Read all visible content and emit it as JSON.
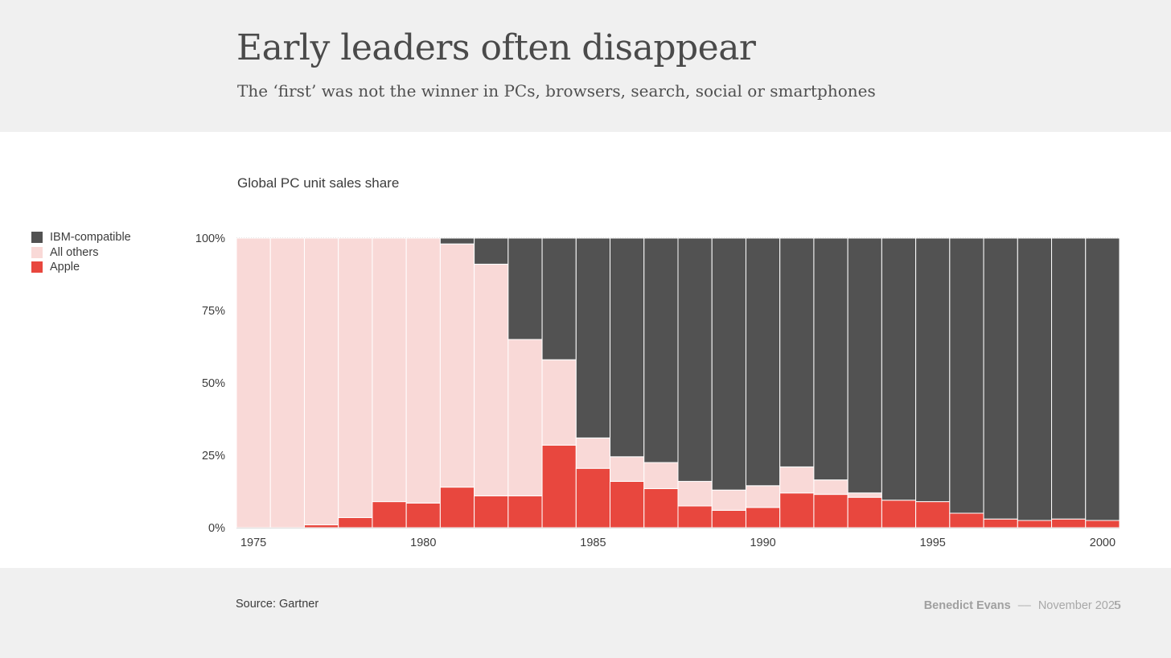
{
  "slide": {
    "title": "Early leaders often disappear",
    "subtitle": "The ‘first’ was not the winner in PCs, browsers, search, social or smartphones",
    "source": "Source: Gartner",
    "author": "Benedict Evans",
    "separator": "––",
    "date": "November 2025",
    "page": "5"
  },
  "chart_data": {
    "type": "bar",
    "stacked": true,
    "title": "Global PC unit sales share",
    "categories": [
      1975,
      1976,
      1977,
      1978,
      1979,
      1980,
      1981,
      1982,
      1983,
      1984,
      1985,
      1986,
      1987,
      1988,
      1989,
      1990,
      1991,
      1992,
      1993,
      1994,
      1995,
      1996,
      1997,
      1998,
      1999,
      2000
    ],
    "x_tick_labels": [
      "1975",
      "1980",
      "1985",
      "1990",
      "1995",
      "2000"
    ],
    "y_tick_labels": [
      "0%",
      "25%",
      "50%",
      "75%",
      "100%"
    ],
    "ylim": [
      0,
      100
    ],
    "legend_position": "top-left",
    "series": [
      {
        "name": "Apple",
        "color": "#e8473e",
        "values": [
          0,
          0,
          1,
          3.5,
          9,
          8.5,
          14,
          11,
          11,
          28.5,
          20.5,
          16,
          13.5,
          7.5,
          6,
          7,
          12,
          11.5,
          10.5,
          9.5,
          9,
          5,
          3,
          2.5,
          3,
          2.5
        ]
      },
      {
        "name": "All others",
        "color": "#f9d9d7",
        "values": [
          100,
          100,
          99,
          96.5,
          91,
          91.5,
          84,
          80,
          54,
          29.5,
          10.5,
          8.5,
          9,
          8.5,
          7,
          7.5,
          9,
          5,
          1.5,
          0,
          0,
          0,
          0,
          0,
          0,
          0
        ]
      },
      {
        "name": "IBM-compatible",
        "color": "#525252",
        "values": [
          0,
          0,
          0,
          0,
          0,
          0,
          2,
          9,
          35,
          42,
          69,
          75.5,
          77.5,
          84,
          87,
          85.5,
          79,
          83.5,
          88,
          90.5,
          91,
          95,
          97,
          97.5,
          97,
          97.5
        ]
      }
    ],
    "legend_order": [
      "IBM-compatible",
      "All others",
      "Apple"
    ]
  }
}
